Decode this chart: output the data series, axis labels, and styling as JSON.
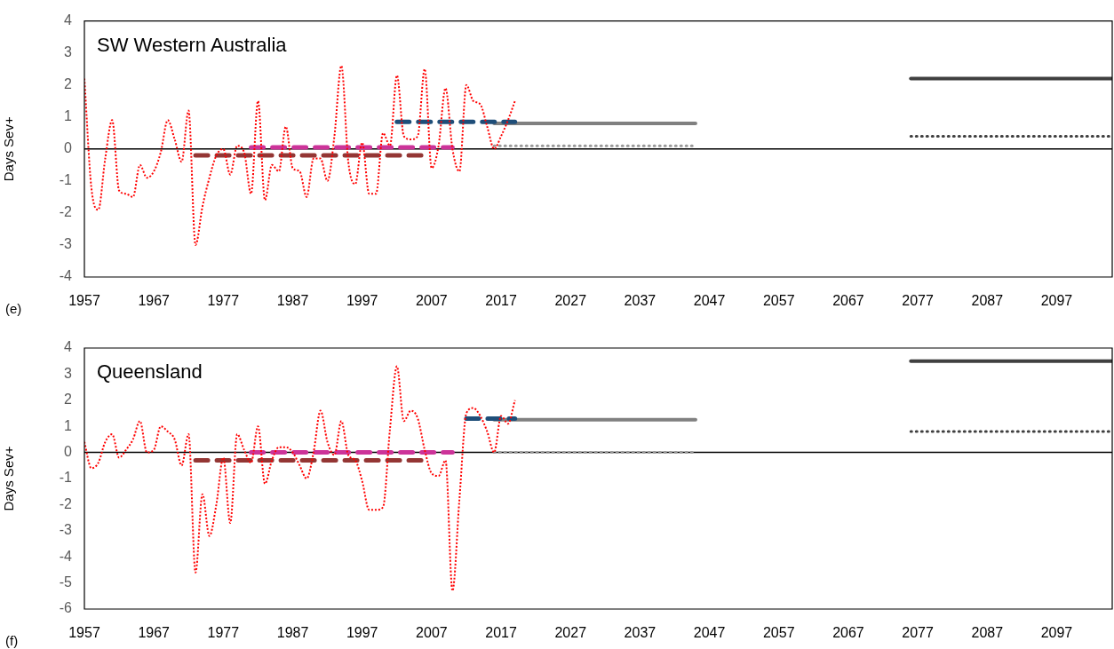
{
  "chart_data": [
    {
      "type": "line",
      "title": "SW Western Australia",
      "ylabel": "Days Sev+",
      "annotations": [
        "(e)"
      ],
      "grid": false,
      "legend": false,
      "marker": "none",
      "xlim": [
        1957,
        2105
      ],
      "xticks": [
        1957,
        1967,
        1977,
        1987,
        1997,
        2007,
        2017,
        2027,
        2037,
        2047,
        2057,
        2067,
        2077,
        2087,
        2097
      ],
      "ylim": [
        -4,
        4
      ],
      "yticks": [
        -4,
        -3,
        -2,
        -1,
        0,
        1,
        2,
        3,
        4
      ],
      "ref_lines": [
        {
          "axis": "y",
          "value": 0,
          "color": "#000000"
        }
      ],
      "x": [
        1957,
        1958,
        1959,
        1960,
        1961,
        1962,
        1963,
        1964,
        1965,
        1966,
        1967,
        1968,
        1969,
        1970,
        1971,
        1972,
        1973,
        1974,
        1975,
        1976,
        1977,
        1978,
        1979,
        1980,
        1981,
        1982,
        1983,
        1984,
        1985,
        1986,
        1987,
        1988,
        1989,
        1990,
        1991,
        1992,
        1993,
        1994,
        1995,
        1996,
        1997,
        1998,
        1999,
        2000,
        2001,
        2002,
        2003,
        2004,
        2005,
        2006,
        2007,
        2008,
        2009,
        2010,
        2011,
        2012,
        2013,
        2014,
        2015,
        2016,
        2017,
        2018,
        2019
      ],
      "series": [
        {
          "color": "#ff0000",
          "line_style": "dotted",
          "values": [
            2.2,
            -1.2,
            -1.9,
            -0.3,
            0.9,
            -1.3,
            -1.4,
            -1.5,
            -0.5,
            -0.9,
            -0.7,
            -0.1,
            0.9,
            0.3,
            -0.4,
            1.2,
            -3.0,
            -1.8,
            -0.9,
            -0.2,
            0.0,
            -0.8,
            0.1,
            -0.1,
            -1.4,
            1.5,
            -1.6,
            -0.5,
            -0.7,
            0.7,
            -0.6,
            -0.7,
            -1.5,
            -0.3,
            -0.3,
            -1.0,
            0.4,
            2.6,
            -0.4,
            -1.1,
            0.2,
            -1.4,
            -1.4,
            0.5,
            0.1,
            2.3,
            0.4,
            0.3,
            0.4,
            2.5,
            -0.6,
            0.1,
            1.9,
            0.0,
            -0.7,
            2.0,
            1.5,
            1.4,
            0.7,
            0.0,
            0.4,
            0.9,
            1.5
          ]
        },
        {
          "color": "#943634",
          "line_style": "dashed",
          "x": [
            1973,
            2006
          ],
          "values": [
            -0.2,
            -0.2
          ]
        },
        {
          "color": "#cc3399",
          "line_style": "dashed",
          "x": [
            1981,
            2010
          ],
          "values": [
            0.05,
            0.05
          ]
        },
        {
          "color": "#1f4e79",
          "line_style": "dashed",
          "x": [
            2002,
            2019
          ],
          "values": [
            0.85,
            0.85
          ]
        },
        {
          "color": "#808080",
          "line_style": "solid",
          "x": [
            2016,
            2045
          ],
          "values": [
            0.8,
            0.8
          ]
        },
        {
          "color": "#999999",
          "line_style": "dotted",
          "x": [
            2016,
            2045
          ],
          "values": [
            0.1,
            0.1
          ]
        },
        {
          "color": "#404040",
          "line_style": "solid",
          "x": [
            2076,
            2105
          ],
          "values": [
            2.2,
            2.2
          ]
        },
        {
          "color": "#404040",
          "line_style": "dotted",
          "x": [
            2076,
            2105
          ],
          "values": [
            0.4,
            0.4
          ]
        }
      ]
    },
    {
      "type": "line",
      "title": "Queensland",
      "ylabel": "Days Sev+",
      "annotations": [
        "(f)"
      ],
      "grid": false,
      "legend": false,
      "marker": "none",
      "xlim": [
        1957,
        2105
      ],
      "xticks": [
        1957,
        1967,
        1977,
        1987,
        1997,
        2007,
        2017,
        2027,
        2037,
        2047,
        2057,
        2067,
        2077,
        2087,
        2097
      ],
      "ylim": [
        -6,
        4
      ],
      "yticks": [
        -6,
        -5,
        -4,
        -3,
        -2,
        -1,
        0,
        1,
        2,
        3,
        4
      ],
      "ref_lines": [
        {
          "axis": "y",
          "value": 0,
          "color": "#000000"
        }
      ],
      "x": [
        1957,
        1958,
        1959,
        1960,
        1961,
        1962,
        1963,
        1964,
        1965,
        1966,
        1967,
        1968,
        1969,
        1970,
        1971,
        1972,
        1973,
        1974,
        1975,
        1976,
        1977,
        1978,
        1979,
        1980,
        1981,
        1982,
        1983,
        1984,
        1985,
        1986,
        1987,
        1988,
        1989,
        1990,
        1991,
        1992,
        1993,
        1994,
        1995,
        1996,
        1997,
        1998,
        1999,
        2000,
        2001,
        2002,
        2003,
        2004,
        2005,
        2006,
        2007,
        2008,
        2009,
        2010,
        2011,
        2012,
        2013,
        2014,
        2015,
        2016,
        2017,
        2018,
        2019
      ],
      "series": [
        {
          "color": "#ff0000",
          "line_style": "dotted",
          "values": [
            0.4,
            -0.6,
            -0.4,
            0.4,
            0.7,
            -0.2,
            0.1,
            0.5,
            1.2,
            0.0,
            0.1,
            1.0,
            0.8,
            0.5,
            -0.5,
            0.7,
            -4.6,
            -1.6,
            -3.2,
            -2.0,
            -0.2,
            -2.7,
            0.7,
            0.1,
            -0.4,
            1.0,
            -1.2,
            -0.3,
            0.2,
            0.2,
            0.0,
            -0.5,
            -1.0,
            0.0,
            1.6,
            0.4,
            -0.1,
            1.2,
            -0.1,
            -0.3,
            -1.1,
            -2.2,
            -2.2,
            -2.1,
            0.9,
            3.3,
            1.2,
            1.6,
            1.3,
            0.1,
            -0.8,
            -0.9,
            -0.3,
            -5.3,
            -1.8,
            1.5,
            1.7,
            1.4,
            0.8,
            0.0,
            1.4,
            1.1,
            2.0
          ]
        },
        {
          "color": "#943634",
          "line_style": "dashed",
          "x": [
            1973,
            2006
          ],
          "values": [
            -0.3,
            -0.3
          ]
        },
        {
          "color": "#cc3399",
          "line_style": "dashed",
          "x": [
            1981,
            2010
          ],
          "values": [
            0.0,
            0.0
          ]
        },
        {
          "color": "#1f4e79",
          "line_style": "dashed",
          "x": [
            2012,
            2019
          ],
          "values": [
            1.3,
            1.3
          ]
        },
        {
          "color": "#808080",
          "line_style": "solid",
          "x": [
            2016,
            2045
          ],
          "values": [
            1.25,
            1.25
          ]
        },
        {
          "color": "#999999",
          "line_style": "dotted",
          "x": [
            2016,
            2045
          ],
          "values": [
            0.0,
            0.0
          ]
        },
        {
          "color": "#404040",
          "line_style": "solid",
          "x": [
            2076,
            2105
          ],
          "values": [
            3.5,
            3.5
          ]
        },
        {
          "color": "#404040",
          "line_style": "dotted",
          "x": [
            2076,
            2105
          ],
          "values": [
            0.8,
            0.8
          ]
        }
      ]
    }
  ]
}
